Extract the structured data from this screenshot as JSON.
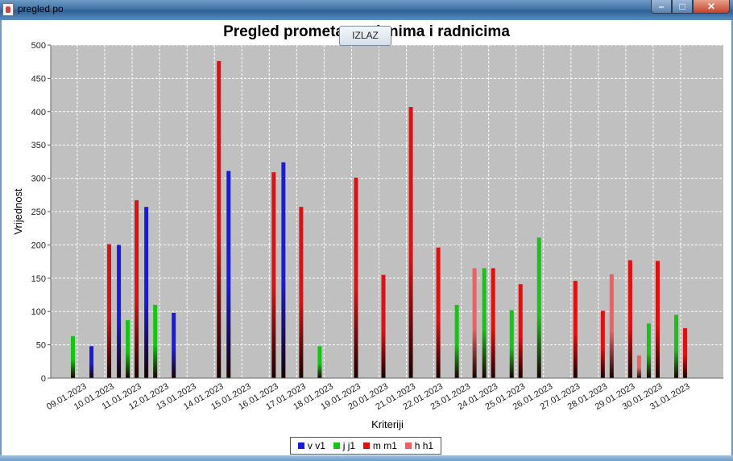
{
  "window": {
    "title": "pregled po"
  },
  "exit_button": {
    "label": "IZLAZ"
  },
  "chart_data": {
    "type": "bar",
    "title": "Pregled prometa po danima i radnicima",
    "xlabel": "Kriteriji",
    "ylabel": "Vrijednost",
    "ylim": [
      0,
      500
    ],
    "yticks": [
      0,
      50,
      100,
      150,
      200,
      250,
      300,
      350,
      400,
      450,
      500
    ],
    "grid": true,
    "legend_position": "bottom",
    "categories": [
      "09.01.2023",
      "10.01.2023",
      "11.01.2023",
      "12.01.2023",
      "13.01.2023",
      "14.01.2023",
      "15.01.2023",
      "16.01.2023",
      "17.01.2023",
      "18.01.2023",
      "19.01.2023",
      "20.01.2023",
      "21.01.2023",
      "22.01.2023",
      "23.01.2023",
      "24.01.2023",
      "25.01.2023",
      "26.01.2023",
      "27.01.2023",
      "28.01.2023",
      "29.01.2023",
      "30.01.2023",
      "31.01.2023"
    ],
    "series": [
      {
        "name": "v v1",
        "color": "#1a1adb",
        "values": [
          null,
          48,
          200,
          257,
          98,
          null,
          311,
          null,
          324,
          null,
          null,
          null,
          null,
          null,
          null,
          null,
          null,
          null,
          null,
          null,
          null,
          null,
          null
        ]
      },
      {
        "name": "j j1",
        "color": "#16c416",
        "values": [
          63,
          null,
          87,
          110,
          null,
          null,
          null,
          null,
          null,
          48,
          null,
          null,
          null,
          null,
          110,
          165,
          102,
          211,
          null,
          null,
          null,
          82,
          95
        ]
      },
      {
        "name": "m m1",
        "color": "#dd1111",
        "values": [
          null,
          201,
          267,
          null,
          null,
          476,
          null,
          309,
          257,
          null,
          301,
          155,
          407,
          196,
          null,
          165,
          141,
          null,
          146,
          101,
          177,
          176,
          75
        ]
      },
      {
        "name": "h h1",
        "color": "#f06060",
        "values": [
          null,
          null,
          null,
          null,
          null,
          null,
          null,
          null,
          null,
          null,
          null,
          null,
          null,
          null,
          165,
          null,
          null,
          null,
          null,
          156,
          34,
          null,
          null
        ]
      }
    ]
  }
}
